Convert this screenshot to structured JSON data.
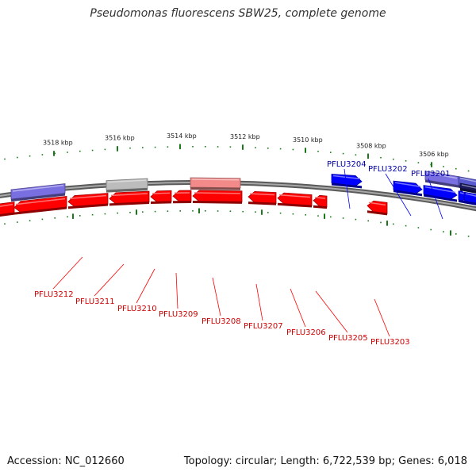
{
  "title": "Pseudomonas fluorescens SBW25, complete genome",
  "footer": {
    "accession": "Accession: NC_012660",
    "summary": "Topology: circular; Length: 6,722,539 bp; Genes: 6,018"
  },
  "colors": {
    "forward_gene": "#0000ff",
    "reverse_gene": "#ff0000",
    "label_forward": "#0000aa",
    "label_reverse": "#cc0000",
    "tick": "#1a7a1a",
    "backbone": "#7f7f7f"
  },
  "scale_labels": [
    "3518 kbp",
    "3516 kbp",
    "3514 kbp",
    "3512 kbp",
    "3510 kbp",
    "3508 kbp",
    "3506 kbp"
  ],
  "gene_labels_forward": [
    "PFLU3204",
    "PFLU3202",
    "PFLU3201"
  ],
  "gene_labels_reverse": [
    "PFLU3212",
    "PFLU3211",
    "PFLU3210",
    "PFLU3209",
    "PFLU3208",
    "PFLU3207",
    "PFLU3206",
    "PFLU3205",
    "PFLU3203"
  ]
}
